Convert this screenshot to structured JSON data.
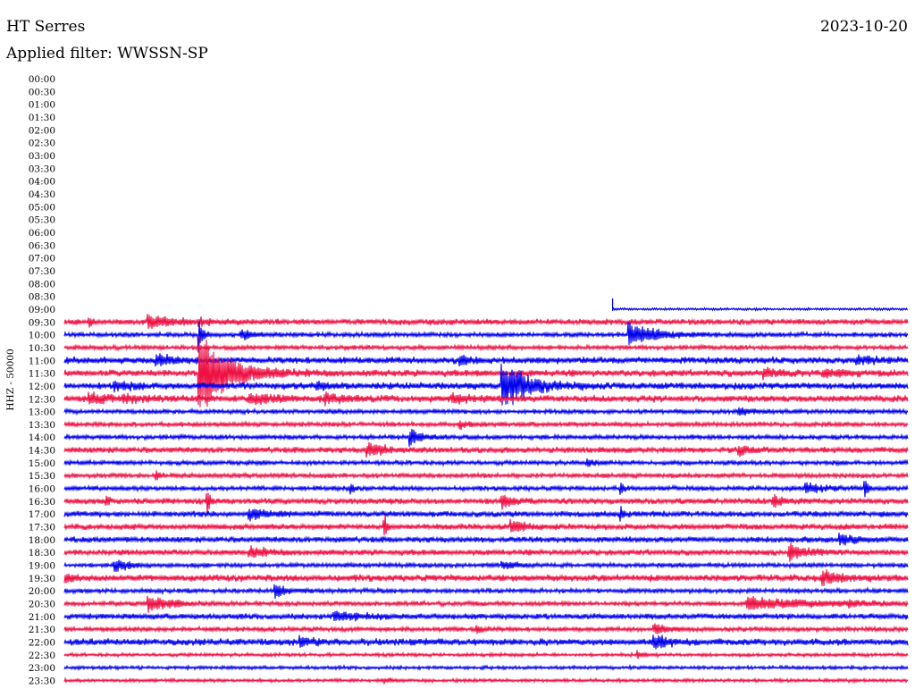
{
  "header": {
    "station": "HT Serres",
    "filter": "Applied filter: WWSSN-SP",
    "date": "2023-10-20"
  },
  "chart_data": {
    "type": "line",
    "title": "HT Serres",
    "subtitle": "Applied filter: WWSSN-SP",
    "ylabel": "HHZ - 50000",
    "row_labels": [
      "00:00",
      "00:30",
      "01:00",
      "01:30",
      "02:00",
      "02:30",
      "03:00",
      "03:30",
      "04:00",
      "04:30",
      "05:00",
      "05:30",
      "06:00",
      "06:30",
      "07:00",
      "07:30",
      "08:00",
      "08:30",
      "09:00",
      "09:30",
      "10:00",
      "10:30",
      "11:00",
      "11:30",
      "12:00",
      "12:30",
      "13:00",
      "13:30",
      "14:00",
      "14:30",
      "15:00",
      "15:30",
      "16:00",
      "16:30",
      "17:00",
      "17:30",
      "18:00",
      "18:30",
      "19:00",
      "19:30",
      "20:00",
      "20:30",
      "21:00",
      "21:30",
      "22:00",
      "22:30",
      "23:00",
      "23:30"
    ],
    "colors": {
      "even_rows": "#0000ee",
      "odd_rows": "#ee1144"
    },
    "data_start_row": "09:00",
    "data_start_fraction": 0.65,
    "noise_level": [
      0,
      0,
      0,
      0,
      0,
      0,
      0,
      0,
      0,
      0,
      0,
      0,
      0,
      0,
      0,
      0,
      0,
      0,
      1,
      2.5,
      2,
      2,
      3,
      3,
      3,
      3,
      2,
      2,
      2,
      2.5,
      2,
      2,
      2,
      2.5,
      2.5,
      2.5,
      2.5,
      2.5,
      2,
      3,
      2,
      2,
      2.5,
      2,
      3,
      1.5,
      1.5,
      1.5
    ],
    "events": [
      {
        "row": "09:00",
        "pos": 0.65,
        "amp": 12,
        "width": 0.004,
        "shape": "step"
      },
      {
        "row": "09:30",
        "pos": 0.03,
        "amp": 7,
        "width": 0.004
      },
      {
        "row": "09:30",
        "pos": 0.1,
        "amp": 9,
        "width": 0.025
      },
      {
        "row": "09:30",
        "pos": 0.16,
        "amp": 4,
        "width": 0.01
      },
      {
        "row": "10:00",
        "pos": 0.21,
        "amp": 7,
        "width": 0.012
      },
      {
        "row": "10:00",
        "pos": 0.67,
        "amp": 14,
        "width": 0.03
      },
      {
        "row": "10:00",
        "pos": 0.16,
        "amp": 22,
        "width": 0.004
      },
      {
        "row": "11:00",
        "pos": 0.11,
        "amp": 7,
        "width": 0.02
      },
      {
        "row": "11:00",
        "pos": 0.47,
        "amp": 5,
        "width": 0.01
      },
      {
        "row": "11:00",
        "pos": 0.94,
        "amp": 6,
        "width": 0.015
      },
      {
        "row": "11:30",
        "pos": 0.16,
        "amp": 50,
        "width": 0.035
      },
      {
        "row": "11:30",
        "pos": 0.83,
        "amp": 6,
        "width": 0.015
      },
      {
        "row": "11:30",
        "pos": 0.9,
        "amp": 5,
        "width": 0.02
      },
      {
        "row": "12:00",
        "pos": 0.52,
        "amp": 28,
        "width": 0.03
      },
      {
        "row": "12:00",
        "pos": 0.06,
        "amp": 5,
        "width": 0.02
      },
      {
        "row": "12:00",
        "pos": 0.3,
        "amp": 5,
        "width": 0.01
      },
      {
        "row": "12:30",
        "pos": 0.03,
        "amp": 6,
        "width": 0.02
      },
      {
        "row": "12:30",
        "pos": 0.07,
        "amp": 5,
        "width": 0.02
      },
      {
        "row": "12:30",
        "pos": 0.22,
        "amp": 7,
        "width": 0.03
      },
      {
        "row": "12:30",
        "pos": 0.31,
        "amp": 6,
        "width": 0.02
      },
      {
        "row": "12:30",
        "pos": 0.46,
        "amp": 6,
        "width": 0.02
      },
      {
        "row": "13:00",
        "pos": 0.8,
        "amp": 4,
        "width": 0.02
      },
      {
        "row": "13:30",
        "pos": 0.47,
        "amp": 5,
        "width": 0.01
      },
      {
        "row": "14:00",
        "pos": 0.41,
        "amp": 12,
        "width": 0.012
      },
      {
        "row": "14:30",
        "pos": 0.36,
        "amp": 9,
        "width": 0.02
      },
      {
        "row": "14:30",
        "pos": 0.8,
        "amp": 6,
        "width": 0.015
      },
      {
        "row": "15:00",
        "pos": 0.62,
        "amp": 4,
        "width": 0.01
      },
      {
        "row": "15:30",
        "pos": 0.11,
        "amp": 6,
        "width": 0.004
      },
      {
        "row": "16:00",
        "pos": 0.34,
        "amp": 8,
        "width": 0.003
      },
      {
        "row": "16:00",
        "pos": 0.66,
        "amp": 9,
        "width": 0.003
      },
      {
        "row": "16:00",
        "pos": 0.88,
        "amp": 6,
        "width": 0.02
      },
      {
        "row": "16:00",
        "pos": 0.95,
        "amp": 14,
        "width": 0.003
      },
      {
        "row": "16:30",
        "pos": 0.05,
        "amp": 9,
        "width": 0.003
      },
      {
        "row": "16:30",
        "pos": 0.17,
        "amp": 14,
        "width": 0.003
      },
      {
        "row": "16:30",
        "pos": 0.52,
        "amp": 9,
        "width": 0.012
      },
      {
        "row": "16:30",
        "pos": 0.84,
        "amp": 8,
        "width": 0.012
      },
      {
        "row": "17:00",
        "pos": 0.22,
        "amp": 8,
        "width": 0.02
      },
      {
        "row": "17:00",
        "pos": 0.66,
        "amp": 8,
        "width": 0.003
      },
      {
        "row": "17:30",
        "pos": 0.38,
        "amp": 14,
        "width": 0.003
      },
      {
        "row": "17:30",
        "pos": 0.53,
        "amp": 7,
        "width": 0.02
      },
      {
        "row": "18:00",
        "pos": 0.92,
        "amp": 6,
        "width": 0.02
      },
      {
        "row": "18:30",
        "pos": 0.22,
        "amp": 7,
        "width": 0.02
      },
      {
        "row": "18:30",
        "pos": 0.86,
        "amp": 10,
        "width": 0.02
      },
      {
        "row": "19:00",
        "pos": 0.06,
        "amp": 8,
        "width": 0.015
      },
      {
        "row": "19:00",
        "pos": 0.52,
        "amp": 4,
        "width": 0.015
      },
      {
        "row": "19:30",
        "pos": 0.0,
        "amp": 6,
        "width": 0.008
      },
      {
        "row": "19:30",
        "pos": 0.9,
        "amp": 8,
        "width": 0.02
      },
      {
        "row": "20:00",
        "pos": 0.25,
        "amp": 9,
        "width": 0.012
      },
      {
        "row": "20:30",
        "pos": 0.1,
        "amp": 10,
        "width": 0.025
      },
      {
        "row": "20:30",
        "pos": 0.81,
        "amp": 8,
        "width": 0.07
      },
      {
        "row": "20:30",
        "pos": 0.93,
        "amp": 4,
        "width": 0.01
      },
      {
        "row": "21:00",
        "pos": 0.32,
        "amp": 6,
        "width": 0.03
      },
      {
        "row": "21:30",
        "pos": 0.49,
        "amp": 5,
        "width": 0.008
      },
      {
        "row": "21:30",
        "pos": 0.7,
        "amp": 7,
        "width": 0.015
      },
      {
        "row": "22:00",
        "pos": 0.28,
        "amp": 5,
        "width": 0.015
      },
      {
        "row": "22:00",
        "pos": 0.7,
        "amp": 8,
        "width": 0.015
      },
      {
        "row": "22:30",
        "pos": 0.68,
        "amp": 4,
        "width": 0.008
      },
      {
        "row": "23:30",
        "pos": 0.38,
        "amp": 4,
        "width": 0.005
      }
    ]
  }
}
